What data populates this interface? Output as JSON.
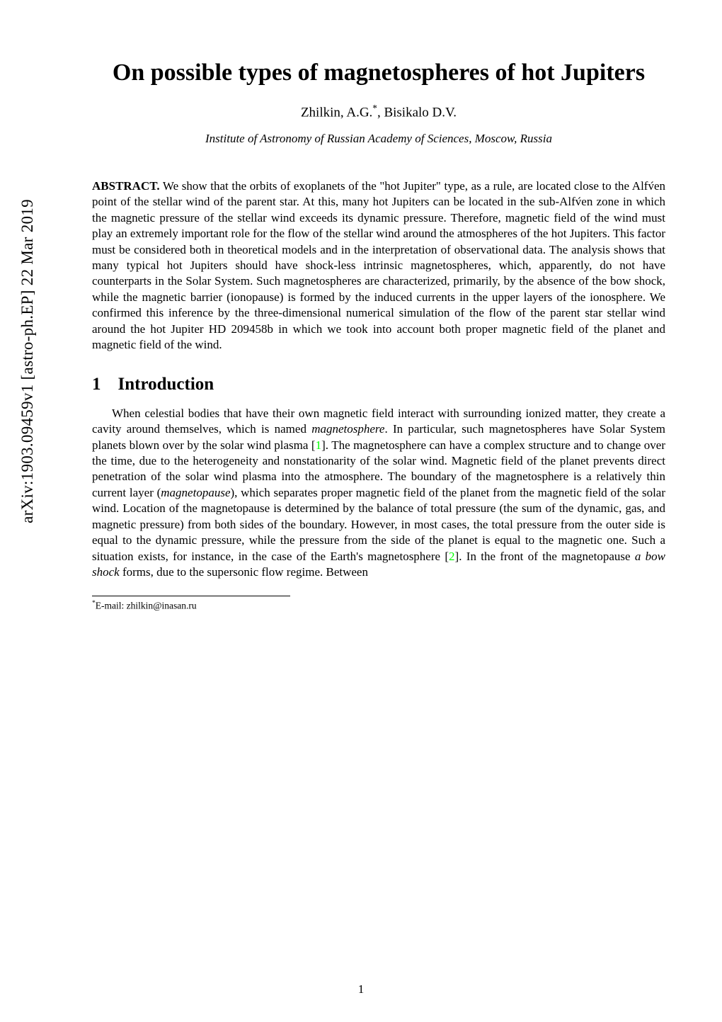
{
  "arxiv_id": "arXiv:1903.09459v1  [astro-ph.EP]  22 Mar 2019",
  "title": "On possible types of magnetospheres of hot Jupiters",
  "authors": "Zhilkin, A.G.*, Bisikalo D.V.",
  "affiliation": "Institute of Astronomy of Russian Academy of Sciences, Moscow, Russia",
  "abstract_label": "ABSTRACT.",
  "abstract": " We show that the orbits of exoplanets of the \"hot Jupiter\" type, as a rule, are located close to the Alfv́en point of the stellar wind of the parent star. At this, many hot Jupiters can be located in the sub-Alfv́en zone in which the magnetic pressure of the stellar wind exceeds its dynamic pressure. Therefore, magnetic field of the wind must play an extremely important role for the flow of the stellar wind around the atmospheres of the hot Jupiters. This factor must be considered both in theoretical models and in the interpretation of observational data. The analysis shows that many typical hot Jupiters should have shock-less intrinsic magnetospheres, which, apparently, do not have counterparts in the Solar System. Such magnetospheres are characterized, primarily, by the absence of the bow shock, while the magnetic barrier (ionopause) is formed by the induced currents in the upper layers of the ionosphere. We confirmed this inference by the three-dimensional numerical simulation of the flow of the parent star stellar wind around the hot Jupiter HD 209458b in which we took into account both proper magnetic field of the planet and magnetic field of the wind.",
  "section": {
    "number": "1",
    "title": "Introduction"
  },
  "body_pre": "When celestial bodies that have their own magnetic field interact with surrounding ionized matter, they create a cavity around themselves, which is named ",
  "body_magnetosphere": "magnetosphere",
  "body_mid1": ". In particular, such magnetospheres have Solar System planets blown over by the solar wind plasma [",
  "cite1": "1",
  "body_mid2": "]. The magnetosphere can have a complex structure and to change over the time, due to the heterogeneity and nonstationarity of the solar wind. Magnetic field of the planet prevents direct penetration of the solar wind plasma into the atmosphere. The boundary of the magnetosphere is a relatively thin current layer (",
  "body_magnetopause": "magnetopause",
  "body_mid3": "), which separates proper magnetic field of the planet from the magnetic field of the solar wind. Location of the magnetopause is determined by the balance of total pressure (the sum of the dynamic, gas, and magnetic pressure) from both sides of the boundary. However, in most cases, the total pressure from the outer side is equal to the dynamic pressure, while the pressure from the side of the planet is equal to the magnetic one. Such a situation exists, for instance, in the case of the Earth's magnetosphere [",
  "cite2": "2",
  "body_mid4": "]. In the front of the magnetopause ",
  "body_bowshock": "a bow shock",
  "body_post": " forms, due to the supersonic flow regime. Between",
  "footnote_marker": "*",
  "footnote": "E-mail: zhilkin@inasan.ru",
  "page_number": "1",
  "colors": {
    "text": "#000000",
    "background": "#ffffff",
    "citation": "#00ff00"
  }
}
